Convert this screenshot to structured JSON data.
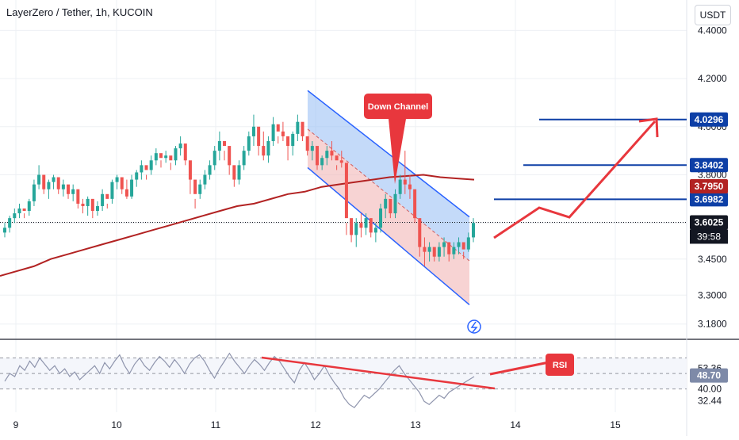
{
  "header": {
    "title": "LayerZero / Tether, 1h, KUCOIN",
    "currency": "USDT"
  },
  "colors": {
    "up": "#26a69a",
    "down": "#ef5350",
    "ma": "#b22222",
    "level": "#0d3fa6",
    "arrow": "#e8373d",
    "rsi": "#8f95ad",
    "channel_top": "#2962ff",
    "channel_fill_top": "#9cc2f5",
    "channel_fill_bottom": "#f1b5b5"
  },
  "chart_data": {
    "type": "candlestick",
    "price_axis": {
      "min": 3.1,
      "max": 4.5,
      "ticks": [
        "4.4000",
        "4.2000",
        "4.0000",
        "3.8000",
        "3.4500",
        "3.3000",
        "3.1800"
      ]
    },
    "time_axis": {
      "labels": [
        "9",
        "10",
        "11",
        "12",
        "13",
        "14",
        "15"
      ]
    },
    "horizontal_levels": [
      {
        "label": "4.0296",
        "value": 4.0296
      },
      {
        "label": "3.8402",
        "value": 3.8402
      },
      {
        "label": "3.6982",
        "value": 3.6982
      }
    ],
    "moving_average_label": "3.7950",
    "last_price": {
      "label": "3.6025",
      "value": 3.6025,
      "countdown": "39:58"
    },
    "annotations": {
      "channel": "Down Channel",
      "rsi": "RSI"
    },
    "rsi": {
      "ticks": [
        "53.36",
        "40.00",
        "32.44"
      ],
      "current": "48.70"
    },
    "candles_ohlc": [
      [
        3.56,
        3.6,
        3.54,
        3.58
      ],
      [
        3.58,
        3.63,
        3.56,
        3.62
      ],
      [
        3.62,
        3.66,
        3.6,
        3.64
      ],
      [
        3.64,
        3.68,
        3.62,
        3.66
      ],
      [
        3.66,
        3.64,
        3.62,
        3.65
      ],
      [
        3.65,
        3.7,
        3.63,
        3.69
      ],
      [
        3.69,
        3.78,
        3.67,
        3.76
      ],
      [
        3.76,
        3.84,
        3.74,
        3.8
      ],
      [
        3.8,
        3.76,
        3.72,
        3.74
      ],
      [
        3.74,
        3.78,
        3.7,
        3.77
      ],
      [
        3.77,
        3.8,
        3.74,
        3.79
      ],
      [
        3.79,
        3.76,
        3.72,
        3.74
      ],
      [
        3.74,
        3.78,
        3.71,
        3.76
      ],
      [
        3.76,
        3.74,
        3.7,
        3.72
      ],
      [
        3.72,
        3.76,
        3.69,
        3.74
      ],
      [
        3.74,
        3.71,
        3.66,
        3.68
      ],
      [
        3.68,
        3.7,
        3.64,
        3.67
      ],
      [
        3.67,
        3.71,
        3.63,
        3.7
      ],
      [
        3.7,
        3.67,
        3.62,
        3.65
      ],
      [
        3.65,
        3.69,
        3.63,
        3.67
      ],
      [
        3.67,
        3.74,
        3.65,
        3.72
      ],
      [
        3.72,
        3.68,
        3.66,
        3.7
      ],
      [
        3.7,
        3.78,
        3.68,
        3.77
      ],
      [
        3.77,
        3.8,
        3.74,
        3.79
      ],
      [
        3.79,
        3.76,
        3.72,
        3.74
      ],
      [
        3.74,
        3.78,
        3.7,
        3.71
      ],
      [
        3.71,
        3.8,
        3.7,
        3.78
      ],
      [
        3.78,
        3.82,
        3.75,
        3.81
      ],
      [
        3.81,
        3.86,
        3.78,
        3.84
      ],
      [
        3.84,
        3.8,
        3.78,
        3.82
      ],
      [
        3.82,
        3.88,
        3.8,
        3.86
      ],
      [
        3.86,
        3.91,
        3.84,
        3.89
      ],
      [
        3.89,
        3.86,
        3.83,
        3.87
      ],
      [
        3.87,
        3.9,
        3.85,
        3.88
      ],
      [
        3.88,
        3.85,
        3.82,
        3.86
      ],
      [
        3.86,
        3.92,
        3.84,
        3.91
      ],
      [
        3.91,
        3.96,
        3.88,
        3.93
      ],
      [
        3.93,
        3.88,
        3.84,
        3.86
      ],
      [
        3.86,
        3.8,
        3.72,
        3.78
      ],
      [
        3.78,
        3.7,
        3.66,
        3.72
      ],
      [
        3.72,
        3.78,
        3.7,
        3.76
      ],
      [
        3.76,
        3.82,
        3.74,
        3.8
      ],
      [
        3.8,
        3.86,
        3.78,
        3.84
      ],
      [
        3.84,
        3.92,
        3.82,
        3.9
      ],
      [
        3.9,
        3.98,
        3.86,
        3.94
      ],
      [
        3.94,
        3.9,
        3.86,
        3.92
      ],
      [
        3.92,
        3.86,
        3.8,
        3.84
      ],
      [
        3.84,
        3.79,
        3.75,
        3.78
      ],
      [
        3.78,
        3.86,
        3.76,
        3.84
      ],
      [
        3.84,
        3.92,
        3.82,
        3.9
      ],
      [
        3.9,
        3.98,
        3.88,
        3.96
      ],
      [
        3.96,
        4.05,
        3.92,
        4.0
      ],
      [
        4.0,
        3.94,
        3.88,
        3.92
      ],
      [
        3.92,
        3.98,
        3.86,
        3.88
      ],
      [
        3.88,
        3.96,
        3.85,
        3.94
      ],
      [
        3.94,
        4.04,
        3.92,
        4.01
      ],
      [
        4.01,
        3.96,
        3.93,
        3.98
      ],
      [
        3.98,
        4.02,
        3.94,
        3.96
      ],
      [
        3.96,
        3.92,
        3.86,
        3.92
      ],
      [
        3.92,
        3.98,
        3.88,
        3.97
      ],
      [
        3.97,
        4.05,
        3.94,
        4.02
      ],
      [
        4.02,
        3.98,
        3.94,
        3.96
      ],
      [
        3.96,
        3.92,
        3.88,
        3.9
      ],
      [
        3.9,
        3.94,
        3.86,
        3.92
      ],
      [
        3.92,
        3.86,
        3.82,
        3.84
      ],
      [
        3.84,
        3.88,
        3.82,
        3.87
      ],
      [
        3.87,
        3.92,
        3.84,
        3.9
      ],
      [
        3.9,
        3.94,
        3.86,
        3.88
      ],
      [
        3.88,
        3.84,
        3.82,
        3.86
      ],
      [
        3.86,
        3.9,
        3.83,
        3.85
      ],
      [
        3.85,
        3.6,
        3.55,
        3.62
      ],
      [
        3.62,
        3.58,
        3.52,
        3.55
      ],
      [
        3.55,
        3.62,
        3.5,
        3.6
      ],
      [
        3.6,
        3.64,
        3.54,
        3.58
      ],
      [
        3.58,
        3.64,
        3.55,
        3.62
      ],
      [
        3.62,
        3.6,
        3.54,
        3.56
      ],
      [
        3.56,
        3.6,
        3.52,
        3.58
      ],
      [
        3.58,
        3.68,
        3.56,
        3.66
      ],
      [
        3.66,
        3.72,
        3.62,
        3.7
      ],
      [
        3.7,
        3.66,
        3.62,
        3.64
      ],
      [
        3.64,
        3.74,
        3.62,
        3.72
      ],
      [
        3.72,
        3.8,
        3.7,
        3.78
      ],
      [
        3.78,
        3.9,
        3.72,
        3.76
      ],
      [
        3.76,
        3.8,
        3.7,
        3.74
      ],
      [
        3.74,
        3.68,
        3.6,
        3.62
      ],
      [
        3.62,
        3.58,
        3.46,
        3.5
      ],
      [
        3.5,
        3.54,
        3.42,
        3.48
      ],
      [
        3.48,
        3.52,
        3.44,
        3.5
      ],
      [
        3.5,
        3.48,
        3.44,
        3.46
      ],
      [
        3.46,
        3.52,
        3.44,
        3.5
      ],
      [
        3.5,
        3.54,
        3.46,
        3.52
      ],
      [
        3.52,
        3.5,
        3.44,
        3.47
      ],
      [
        3.47,
        3.52,
        3.45,
        3.5
      ],
      [
        3.5,
        3.54,
        3.47,
        3.52
      ],
      [
        3.52,
        3.48,
        3.45,
        3.49
      ],
      [
        3.49,
        3.56,
        3.48,
        3.54
      ],
      [
        3.54,
        3.62,
        3.52,
        3.6
      ]
    ],
    "ma_values": [
      3.38,
      3.4,
      3.42,
      3.45,
      3.47,
      3.49,
      3.51,
      3.53,
      3.55,
      3.57,
      3.59,
      3.61,
      3.63,
      3.65,
      3.67,
      3.68,
      3.7,
      3.72,
      3.73,
      3.75,
      3.76,
      3.77,
      3.78,
      3.79,
      3.795,
      3.8,
      3.79,
      3.785,
      3.78
    ]
  }
}
